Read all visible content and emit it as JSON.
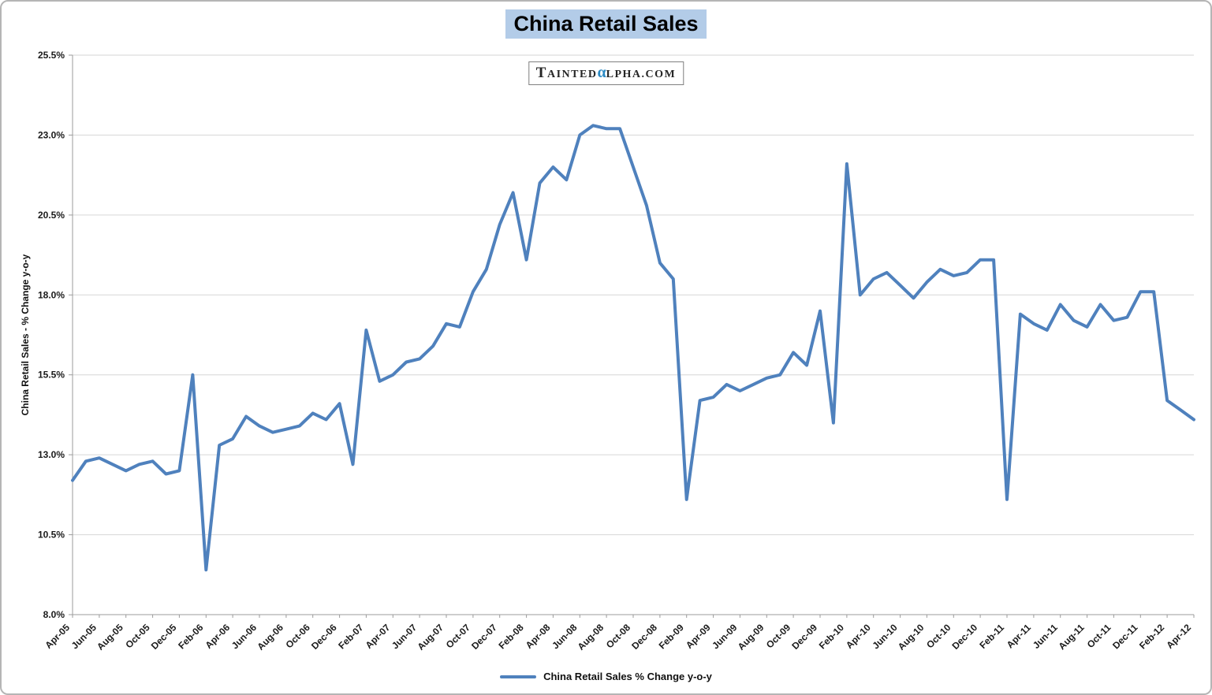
{
  "title": "China Retail Sales",
  "watermark": {
    "t1": "T",
    "t2": "AINTED",
    "alpha": "α",
    "t3": "LPHA.COM"
  },
  "legend": {
    "label": "China Retail Sales % Change y-o-y"
  },
  "colors": {
    "line": "#4f81bd",
    "title_highlight": "#b3cce8",
    "watermark_alpha_blue": "#2b8ac4",
    "grid": "#d6d6d6",
    "axis": "#9b9b9b"
  },
  "chart_data": {
    "type": "line",
    "title": "China Retail Sales",
    "xlabel": "",
    "ylabel": "China Retail Sales - % Change y-o-y",
    "ylim": [
      8.0,
      25.5
    ],
    "y_ticks": [
      8.0,
      10.5,
      13.0,
      15.5,
      18.0,
      20.5,
      23.0,
      25.5
    ],
    "y_tick_labels": [
      "8.0%",
      "10.5%",
      "13.0%",
      "15.5%",
      "18.0%",
      "20.5%",
      "23.0%",
      "25.5%"
    ],
    "x_label_every": 2,
    "grid": "horizontal",
    "legend_position": "bottom",
    "line_color": "#4f81bd",
    "grid_color": "#d6d6d6",
    "axis_color": "#9b9b9b",
    "series_name": "China Retail Sales % Change y-o-y",
    "categories": [
      "Apr-05",
      "May-05",
      "Jun-05",
      "Jul-05",
      "Aug-05",
      "Sep-05",
      "Oct-05",
      "Nov-05",
      "Dec-05",
      "Jan-06",
      "Feb-06",
      "Mar-06",
      "Apr-06",
      "May-06",
      "Jun-06",
      "Jul-06",
      "Aug-06",
      "Sep-06",
      "Oct-06",
      "Nov-06",
      "Dec-06",
      "Jan-07",
      "Feb-07",
      "Mar-07",
      "Apr-07",
      "May-07",
      "Jun-07",
      "Jul-07",
      "Aug-07",
      "Sep-07",
      "Oct-07",
      "Nov-07",
      "Dec-07",
      "Jan-08",
      "Feb-08",
      "Mar-08",
      "Apr-08",
      "May-08",
      "Jun-08",
      "Jul-08",
      "Aug-08",
      "Sep-08",
      "Oct-08",
      "Nov-08",
      "Dec-08",
      "Jan-09",
      "Feb-09",
      "Mar-09",
      "Apr-09",
      "May-09",
      "Jun-09",
      "Jul-09",
      "Aug-09",
      "Sep-09",
      "Oct-09",
      "Nov-09",
      "Dec-09",
      "Jan-10",
      "Feb-10",
      "Mar-10",
      "Apr-10",
      "May-10",
      "Jun-10",
      "Jul-10",
      "Aug-10",
      "Sep-10",
      "Oct-10",
      "Nov-10",
      "Dec-10",
      "Jan-11",
      "Feb-11",
      "Mar-11",
      "Apr-11",
      "May-11",
      "Jun-11",
      "Jul-11",
      "Aug-11",
      "Sep-11",
      "Oct-11",
      "Nov-11",
      "Dec-11",
      "Jan-12",
      "Feb-12",
      "Mar-12",
      "Apr-12"
    ],
    "values": [
      12.2,
      12.8,
      12.9,
      12.7,
      12.5,
      12.7,
      12.8,
      12.4,
      12.5,
      15.5,
      9.4,
      13.3,
      13.5,
      14.2,
      13.9,
      13.7,
      13.8,
      13.9,
      14.3,
      14.1,
      14.6,
      12.7,
      16.9,
      15.3,
      15.5,
      15.9,
      16.0,
      16.4,
      17.1,
      17.0,
      18.1,
      18.8,
      20.2,
      21.2,
      19.1,
      21.5,
      22.0,
      21.6,
      23.0,
      23.3,
      23.2,
      23.2,
      22.0,
      20.8,
      19.0,
      18.5,
      11.6,
      14.7,
      14.8,
      15.2,
      15.0,
      15.2,
      15.4,
      15.5,
      16.2,
      15.8,
      17.5,
      14.0,
      22.1,
      18.0,
      18.5,
      18.7,
      18.3,
      17.9,
      18.4,
      18.8,
      18.6,
      18.7,
      19.1,
      19.1,
      11.6,
      17.4,
      17.1,
      16.9,
      17.7,
      17.2,
      17.0,
      17.7,
      17.2,
      17.3,
      18.1,
      18.1,
      14.7,
      14.4,
      14.1
    ]
  }
}
